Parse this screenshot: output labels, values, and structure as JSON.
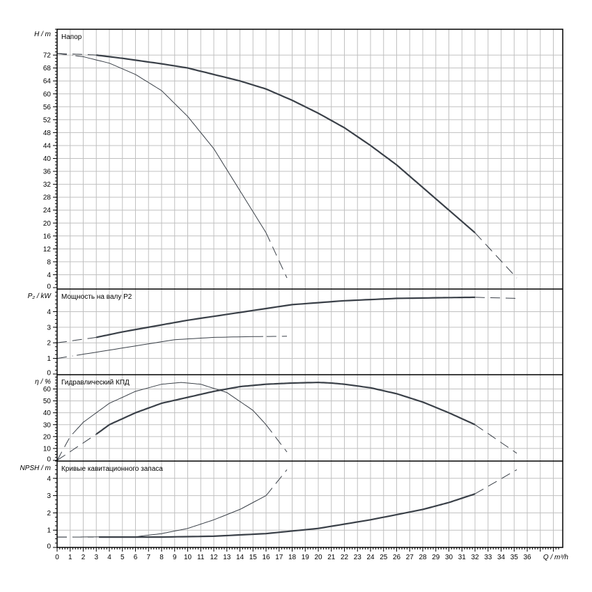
{
  "chart_data": [
    {
      "type": "line",
      "title": "Напор",
      "ylabel": "H / m",
      "ylim": [
        0,
        80
      ],
      "yticks": [
        0,
        4,
        8,
        12,
        16,
        20,
        24,
        28,
        32,
        36,
        40,
        44,
        48,
        52,
        56,
        60,
        64,
        68,
        72
      ],
      "grid": true,
      "series": [
        {
          "x": [
            0,
            2,
            3,
            5,
            8,
            10,
            12,
            14,
            16,
            18,
            20,
            22,
            24,
            26,
            28,
            30,
            32,
            35.2
          ],
          "y": [
            72.5,
            72.2,
            72,
            71,
            69.3,
            68,
            66,
            64,
            61.5,
            58,
            54,
            49.5,
            44,
            38,
            31,
            24,
            17,
            3
          ],
          "solid_range": [
            3,
            32
          ]
        },
        {
          "x": [
            0,
            2,
            4,
            6,
            8,
            10,
            12,
            14,
            16,
            17.6
          ],
          "y": [
            72.5,
            71.5,
            69.5,
            66,
            61,
            53,
            43,
            30,
            17,
            3
          ],
          "solid_range": [
            1.3,
            16
          ]
        }
      ]
    },
    {
      "type": "line",
      "title": "Мощность на валу P2",
      "ylabel": "P₂ / kW",
      "ylim": [
        0,
        5.45
      ],
      "yticks": [
        0,
        1,
        2,
        3,
        4
      ],
      "grid": true,
      "series": [
        {
          "x": [
            0,
            3,
            5,
            8,
            10,
            14,
            18,
            22,
            26,
            30,
            32,
            35.2
          ],
          "y": [
            2,
            2.35,
            2.7,
            3.15,
            3.45,
            3.95,
            4.45,
            4.7,
            4.85,
            4.9,
            4.92,
            4.85
          ],
          "solid_range": [
            3,
            32
          ]
        },
        {
          "x": [
            0,
            3,
            6,
            9,
            12,
            15,
            17.6
          ],
          "y": [
            1,
            1.4,
            1.8,
            2.2,
            2.35,
            2.4,
            2.42
          ],
          "solid_range": [
            1.3,
            16
          ]
        }
      ]
    },
    {
      "type": "line",
      "title": "Гидравлический КПД",
      "ylabel": "η / %",
      "ylim": [
        0,
        72
      ],
      "yticks": [
        0,
        10,
        20,
        30,
        40,
        50,
        60
      ],
      "grid": true,
      "series": [
        {
          "x": [
            0,
            3,
            4,
            6,
            8,
            10,
            12,
            14,
            16,
            18,
            20,
            21,
            22,
            24,
            26,
            28,
            30,
            32,
            35.2
          ],
          "y": [
            0,
            22,
            30,
            40,
            48,
            53,
            58,
            62,
            64,
            65,
            65.5,
            65,
            64,
            61,
            56,
            49,
            40,
            30,
            6
          ],
          "solid_range": [
            3,
            32
          ]
        },
        {
          "x": [
            0,
            1,
            2,
            4,
            6,
            8,
            9.5,
            11,
            13,
            15,
            16,
            17.6
          ],
          "y": [
            0,
            20,
            32,
            48,
            58,
            64,
            65.5,
            64,
            57,
            42,
            30,
            7
          ],
          "solid_range": [
            1.3,
            16
          ]
        }
      ]
    },
    {
      "type": "line",
      "title": "Кривые кавитационного запаса",
      "ylabel": "NPSH / m",
      "ylim": [
        0,
        5
      ],
      "yticks": [
        0,
        1,
        2,
        3,
        4
      ],
      "grid": true,
      "series": [
        {
          "x": [
            0,
            4,
            8,
            12,
            16,
            20,
            24,
            28,
            30,
            32,
            35.2
          ],
          "y": [
            0.6,
            0.6,
            0.6,
            0.65,
            0.8,
            1.1,
            1.6,
            2.2,
            2.6,
            3.1,
            4.5
          ],
          "solid_range": [
            3,
            32
          ]
        },
        {
          "x": [
            0,
            6,
            8,
            10,
            12,
            14,
            16,
            17.6
          ],
          "y": [
            0.6,
            0.62,
            0.8,
            1.1,
            1.6,
            2.2,
            3.0,
            4.5
          ],
          "solid_range": [
            1.3,
            16
          ]
        }
      ]
    }
  ],
  "x_axis": {
    "label": "Q / m³/h",
    "xlim": [
      0,
      38.7
    ],
    "ticks": [
      0,
      1,
      2,
      3,
      4,
      5,
      6,
      7,
      8,
      9,
      10,
      11,
      12,
      13,
      14,
      15,
      16,
      17,
      18,
      19,
      20,
      21,
      22,
      23,
      24,
      25,
      26,
      27,
      28,
      29,
      30,
      31,
      32,
      33,
      34,
      35,
      36
    ]
  },
  "colors": {
    "curve": "#3a4048",
    "grid": "#c0c0c0",
    "axis_label": "#000000"
  }
}
